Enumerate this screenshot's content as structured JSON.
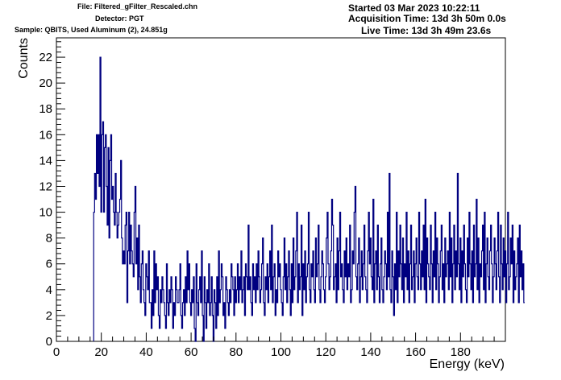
{
  "header": {
    "file": "File: Filtered_gFilter_Rescaled.chn",
    "detector": "Detector: PGT",
    "sample": "Sample: QBITS, Used Aluminum (2), 24.851g",
    "started": "Started 03 Mar 2023 10:22:11",
    "acquisition": "Acquisition Time: 13d 3h 50m 0.0s",
    "live": "Live Time: 13d 3h 49m 23.6s"
  },
  "chart_data": {
    "type": "histogram",
    "xlabel": "Energy (keV)",
    "ylabel": "Counts",
    "xlim": [
      0,
      200
    ],
    "ylim": [
      0,
      23.5
    ],
    "x_ticks": [
      0,
      20,
      40,
      60,
      80,
      100,
      120,
      140,
      160,
      180
    ],
    "y_ticks": [
      0,
      2,
      4,
      6,
      8,
      10,
      12,
      14,
      16,
      18,
      20,
      22
    ],
    "x_tick_labels": [
      "0",
      "20",
      "40",
      "60",
      "80",
      "100",
      "120",
      "140",
      "160",
      "180"
    ],
    "y_tick_labels": [
      "0",
      "2",
      "4",
      "6",
      "8",
      "10",
      "12",
      "14",
      "16",
      "18",
      "20",
      "22"
    ],
    "bin_start": 16.6,
    "bin_width": 0.4,
    "line_color": "#000080",
    "grid": false,
    "counts": [
      10,
      13,
      11,
      16,
      13,
      16,
      12,
      22,
      10,
      16,
      17,
      10,
      15,
      16,
      12,
      9,
      15,
      8,
      14,
      16,
      11,
      12,
      10,
      9,
      13,
      10,
      8,
      9,
      10,
      11,
      14,
      8,
      6,
      7,
      6,
      9,
      10,
      3,
      7,
      10,
      6,
      9,
      7,
      6,
      5,
      10,
      12,
      6,
      8,
      4,
      9,
      5,
      3,
      6,
      7,
      4,
      3,
      2,
      6,
      5,
      4,
      7,
      3,
      3,
      1,
      4,
      2,
      7,
      3,
      6,
      4,
      5,
      2,
      1,
      4,
      3,
      5,
      4,
      3,
      2,
      1,
      6,
      3,
      2,
      4,
      3,
      5,
      4,
      1,
      3,
      2,
      5,
      4,
      3,
      3,
      4,
      6,
      2,
      1,
      3,
      4,
      2,
      5,
      3,
      7,
      4,
      6,
      3,
      2,
      4,
      3,
      5,
      1,
      0,
      6,
      3,
      2,
      4,
      5,
      3,
      7,
      2,
      0,
      5,
      3,
      1,
      4,
      3,
      6,
      2,
      3,
      5,
      2,
      0,
      4,
      3,
      1,
      5,
      2,
      7,
      3,
      4,
      6,
      5,
      2,
      3,
      1,
      5,
      4,
      3,
      2,
      4,
      3,
      6,
      5,
      4,
      2,
      5,
      3,
      4,
      6,
      3,
      5,
      4,
      7,
      3,
      4,
      5,
      2,
      6,
      5,
      4,
      9,
      4,
      5,
      3,
      2,
      6,
      4,
      5,
      3,
      6,
      4,
      7,
      5,
      3,
      4,
      6,
      8,
      3,
      2,
      5,
      4,
      6,
      3,
      5,
      7,
      4,
      9,
      3,
      5,
      6,
      2,
      4,
      3,
      7,
      5,
      6,
      4,
      3,
      2,
      5,
      8,
      4,
      6,
      3,
      5,
      7,
      4,
      2,
      6,
      3,
      8,
      4,
      5,
      7,
      10,
      3,
      6,
      4,
      5,
      9,
      2,
      6,
      4,
      7,
      3,
      5,
      6,
      10,
      4,
      3,
      6,
      5,
      7,
      4,
      3,
      8,
      5,
      6,
      9,
      4,
      3,
      5,
      7,
      6,
      4,
      3,
      5,
      8,
      10,
      6,
      4,
      5,
      7,
      11,
      9,
      4,
      5,
      6,
      3,
      8,
      4,
      7,
      10,
      5,
      6,
      4,
      3,
      7,
      5,
      8,
      4,
      6,
      5,
      9,
      3,
      4,
      7,
      6,
      10,
      12,
      5,
      4,
      6,
      8,
      3,
      5,
      7,
      4,
      6,
      9,
      5,
      4,
      3,
      7,
      10,
      6,
      8,
      5,
      4,
      11,
      3,
      6,
      7,
      4,
      9,
      5,
      3,
      6,
      8,
      4,
      3,
      5,
      7,
      6,
      4,
      10,
      5,
      13,
      4,
      3,
      7,
      5,
      2,
      6,
      4,
      10,
      3,
      7,
      5,
      9,
      6,
      4,
      8,
      3,
      6,
      5,
      10,
      4,
      7,
      3,
      6,
      9,
      4,
      5,
      7,
      3,
      6,
      8,
      5,
      4,
      10,
      6,
      4,
      7,
      5,
      9,
      4,
      11,
      3,
      8,
      6,
      5,
      4,
      9,
      6,
      3,
      7,
      5,
      10,
      4,
      8,
      6,
      3,
      5,
      7,
      9,
      4,
      6,
      3,
      8,
      5,
      6,
      7,
      4,
      10,
      5,
      8,
      3,
      6,
      9,
      4,
      7,
      5,
      13,
      6,
      4,
      8,
      3,
      7,
      5,
      9,
      6,
      4,
      3,
      8,
      5,
      10,
      6,
      4,
      7,
      3,
      9,
      5,
      6,
      11,
      4,
      8,
      3,
      6,
      5,
      7,
      9,
      4,
      10,
      3,
      6,
      8,
      5,
      4,
      7,
      9,
      6,
      3,
      5,
      8,
      6,
      4,
      7,
      10,
      5,
      3,
      9,
      6,
      4,
      8,
      5,
      7,
      3,
      6,
      10,
      4,
      5,
      8,
      6,
      9,
      3,
      7,
      4,
      5,
      6,
      8,
      3,
      9,
      5,
      7,
      4,
      6,
      3
    ]
  }
}
